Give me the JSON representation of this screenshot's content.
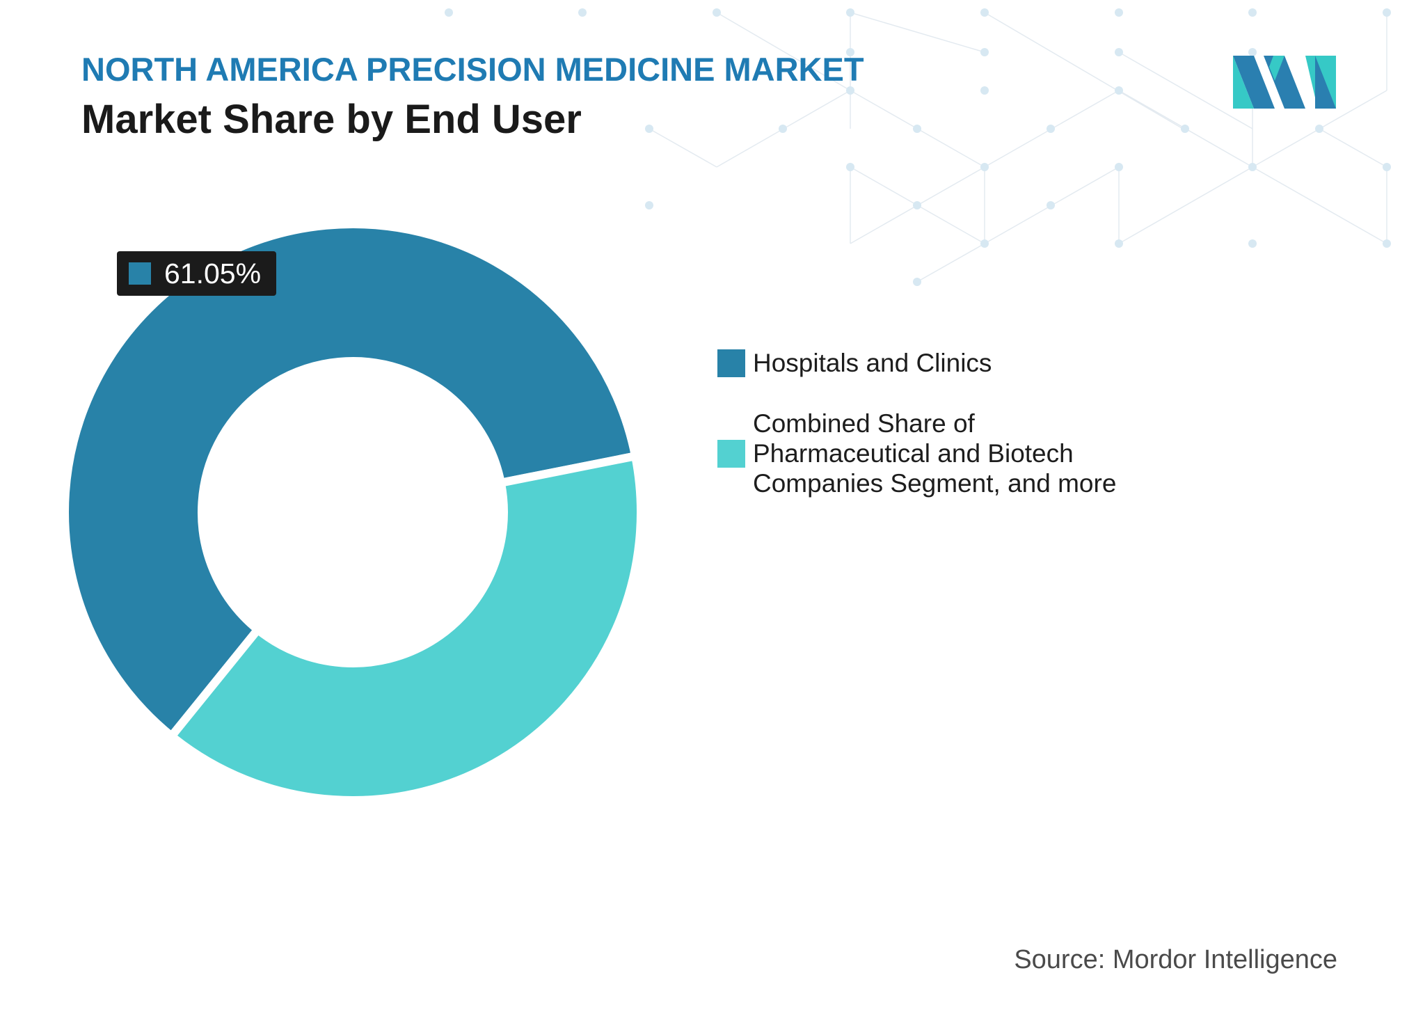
{
  "header": {
    "subtitle": "NORTH AMERICA PRECISION MEDICINE MARKET",
    "title": "Market Share by End User"
  },
  "colors": {
    "series_1": "#2882a8",
    "series_2": "#53d1d1",
    "subtitle": "#1f7bb3",
    "label_bg": "#1b1b1b"
  },
  "chart_data": {
    "type": "pie",
    "categories": [
      "Hospitals and Clinics",
      "Combined Share of Pharmaceutical and Biotech Companies Segment, and more"
    ],
    "values": [
      61.05,
      38.95
    ],
    "data_labels": [
      "61.05%"
    ],
    "donut": true,
    "legend_placement": "right"
  },
  "legend": {
    "items": [
      {
        "label": "Hospitals and Clinics"
      },
      {
        "label": "Combined Share of\nPharmaceutical and Biotech\nCompanies Segment, and more"
      }
    ]
  },
  "source": "Source: Mordor Intelligence",
  "logo": {
    "icon": "mordor-intelligence-logo-icon"
  }
}
